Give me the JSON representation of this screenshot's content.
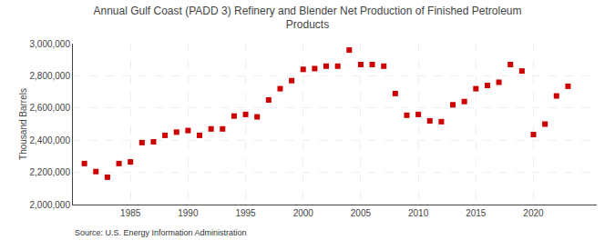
{
  "chart_data": {
    "type": "scatter",
    "title": "Annual Gulf Coast (PADD 3) Refinery and Blender Net Production of Finished Petroleum\nProducts",
    "ylabel": "Thousand Barrels",
    "source": "Source: U.S. Energy Information Administration",
    "color": "#cc0000",
    "marker": "square",
    "grid": true,
    "x": [
      1981,
      1982,
      1983,
      1984,
      1985,
      1986,
      1987,
      1988,
      1989,
      1990,
      1991,
      1992,
      1993,
      1994,
      1995,
      1996,
      1997,
      1998,
      1999,
      2000,
      2001,
      2002,
      2003,
      2004,
      2005,
      2006,
      2007,
      2008,
      2009,
      2010,
      2011,
      2012,
      2013,
      2014,
      2015,
      2016,
      2017,
      2018,
      2019,
      2020,
      2021,
      2022,
      2023
    ],
    "values": [
      2255000,
      2205000,
      2170000,
      2255000,
      2265000,
      2385000,
      2390000,
      2430000,
      2450000,
      2460000,
      2430000,
      2470000,
      2470000,
      2550000,
      2560000,
      2545000,
      2650000,
      2720000,
      2770000,
      2840000,
      2845000,
      2860000,
      2860000,
      2960000,
      2870000,
      2870000,
      2860000,
      2690000,
      2555000,
      2560000,
      2520000,
      2515000,
      2620000,
      2640000,
      2720000,
      2740000,
      2760000,
      2870000,
      2830000,
      2435000,
      2500000,
      2675000,
      2735000
    ],
    "xlim": [
      1980,
      2025.5
    ],
    "xticks": [
      1985,
      1990,
      1995,
      2000,
      2005,
      2010,
      2015,
      2020
    ],
    "ylim": [
      2000000,
      3000000
    ],
    "yticks": [
      {
        "value": 2000000,
        "label": "2,000,000"
      },
      {
        "value": 2200000,
        "label": "2,200,000"
      },
      {
        "value": 2400000,
        "label": "2,400,000"
      },
      {
        "value": 2600000,
        "label": "2,600,000"
      },
      {
        "value": 2800000,
        "label": "2,800,000"
      },
      {
        "value": 3000000,
        "label": "3,000,000"
      }
    ]
  }
}
